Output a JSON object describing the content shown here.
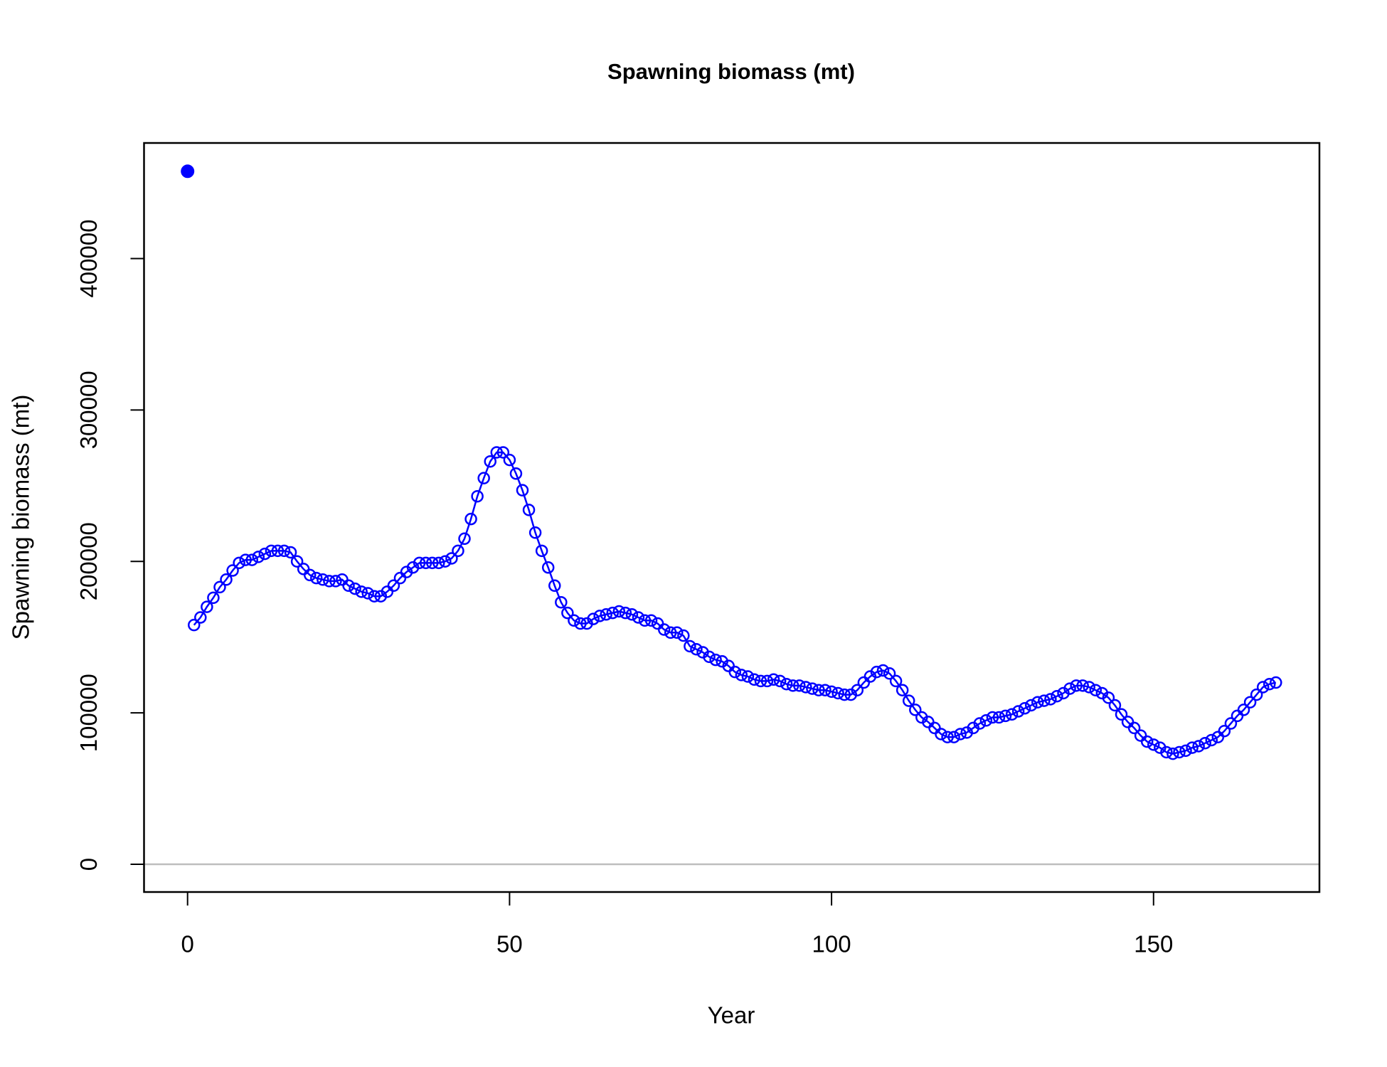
{
  "chart_data": {
    "type": "line",
    "title": "Spawning biomass (mt)",
    "xlabel": "Year",
    "ylabel": "Spawning biomass (mt)",
    "xlim": [
      -6.76,
      175.76
    ],
    "xticks": [
      0,
      50,
      100,
      150
    ],
    "ylim": [
      -18300,
      476300
    ],
    "yticks": [
      0,
      100000,
      200000,
      300000,
      400000
    ],
    "hline": 0,
    "hline_color": "#bebebe",
    "series": [
      {
        "color": "#0000ff",
        "marker": "open",
        "line": true,
        "x": [
          1,
          2,
          3,
          4,
          5,
          6,
          7,
          8,
          9,
          10,
          11,
          12,
          13,
          14,
          15,
          16,
          17,
          18,
          19,
          20,
          21,
          22,
          23,
          24,
          25,
          26,
          27,
          28,
          29,
          30,
          31,
          32,
          33,
          34,
          35,
          36,
          37,
          38,
          39,
          40,
          41,
          42,
          43,
          44,
          45,
          46,
          47,
          48,
          49,
          50,
          51,
          52,
          53,
          54,
          55,
          56,
          57,
          58,
          59,
          60,
          61,
          62,
          63,
          64,
          65,
          66,
          67,
          68,
          69,
          70,
          71,
          72,
          73,
          74,
          75,
          76,
          77,
          78,
          79,
          80,
          81,
          82,
          83,
          84,
          85,
          86,
          87,
          88,
          89,
          90,
          91,
          92,
          93,
          94,
          95,
          96,
          97,
          98,
          99,
          100,
          101,
          102,
          103,
          104,
          105,
          106,
          107,
          108,
          109,
          110,
          111,
          112,
          113,
          114,
          115,
          116,
          117,
          118,
          119,
          120,
          121,
          122,
          123,
          124,
          125,
          126,
          127,
          128,
          129,
          130,
          131,
          132,
          133,
          134,
          135,
          136,
          137,
          138,
          139,
          140,
          141,
          142,
          143,
          144,
          145,
          146,
          147,
          148,
          149,
          150,
          151,
          152,
          153,
          154,
          155,
          156,
          157,
          158,
          159,
          160,
          161,
          162,
          163,
          164,
          165,
          166,
          167,
          168,
          169
        ],
        "values": [
          158000,
          163000,
          170000,
          176000,
          183000,
          188000,
          194000,
          199000,
          201000,
          201000,
          203000,
          205000,
          207000,
          207000,
          207000,
          206000,
          200000,
          195000,
          191000,
          189000,
          188000,
          187000,
          187000,
          188000,
          184000,
          182000,
          180000,
          179000,
          177000,
          177000,
          180000,
          184000,
          189000,
          193000,
          196000,
          199000,
          199000,
          199000,
          199000,
          200000,
          202000,
          207000,
          215000,
          228000,
          243000,
          255000,
          266000,
          272000,
          272000,
          267000,
          258000,
          247000,
          234000,
          219000,
          207000,
          196000,
          184000,
          173000,
          166000,
          161000,
          159000,
          159000,
          162000,
          164000,
          165000,
          166000,
          167000,
          166000,
          165000,
          163000,
          161000,
          161000,
          159000,
          155000,
          153000,
          153000,
          151000,
          144000,
          142000,
          140000,
          137000,
          135000,
          134000,
          131000,
          127000,
          125000,
          124000,
          122000,
          121000,
          121000,
          122000,
          121000,
          119000,
          118000,
          118000,
          117000,
          116000,
          115000,
          115000,
          114000,
          113000,
          112000,
          112000,
          115000,
          120000,
          124000,
          127000,
          128000,
          126000,
          121000,
          115000,
          108000,
          102000,
          97000,
          94000,
          90000,
          86000,
          84000,
          84000,
          86000,
          87000,
          90000,
          93000,
          95000,
          97000,
          97000,
          98000,
          99000,
          101000,
          103000,
          105000,
          107000,
          108000,
          109000,
          111000,
          113000,
          116000,
          118000,
          118000,
          117000,
          115000,
          113000,
          110000,
          105000,
          99000,
          94000,
          90000,
          85000,
          81000,
          79000,
          77000,
          74000,
          73000,
          74000,
          75000,
          77000,
          78000,
          80000,
          82000,
          84000,
          88000,
          93000,
          98000,
          102000,
          107000,
          112000,
          117000,
          119000,
          120000
        ]
      },
      {
        "color": "#0000ff",
        "marker": "filled",
        "line": false,
        "x": [
          0
        ],
        "values": [
          457600
        ]
      }
    ]
  }
}
